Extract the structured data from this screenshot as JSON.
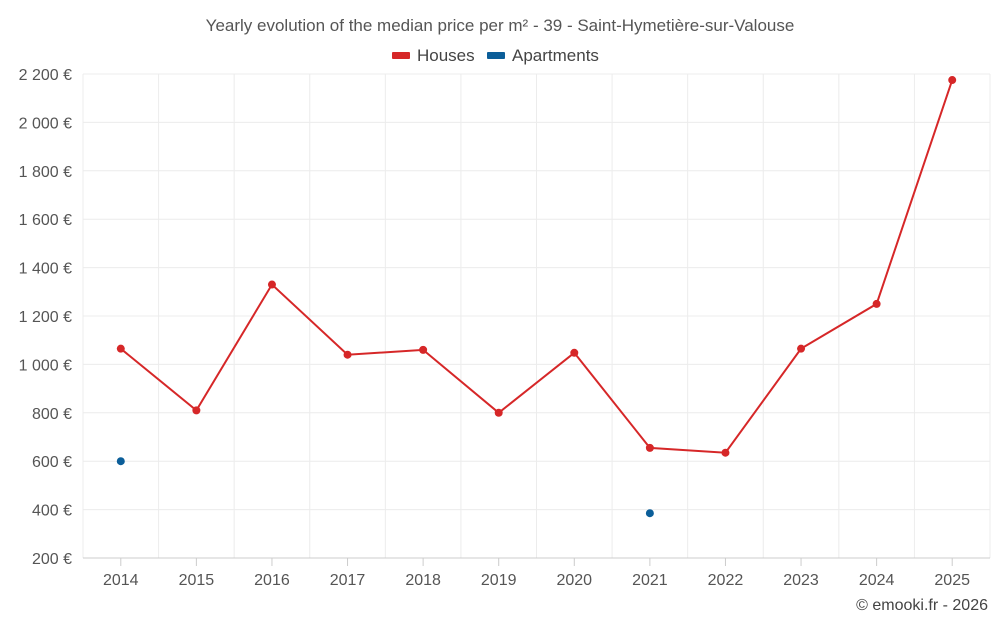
{
  "chart_data": {
    "type": "line",
    "title": "Yearly evolution of the median price per m² - 39 - Saint-Hymetière-sur-Valouse",
    "categories": [
      "2014",
      "2015",
      "2016",
      "2017",
      "2018",
      "2019",
      "2020",
      "2021",
      "2022",
      "2023",
      "2024",
      "2025"
    ],
    "series": [
      {
        "name": "Houses",
        "color": "#d62728",
        "values": [
          1065,
          810,
          1330,
          1040,
          1060,
          800,
          1048,
          655,
          635,
          1065,
          1250,
          2175
        ]
      },
      {
        "name": "Apartments",
        "color": "#0b5e99",
        "values": [
          600,
          null,
          null,
          null,
          null,
          null,
          null,
          385,
          null,
          null,
          null,
          null
        ]
      }
    ],
    "ylim": [
      200,
      2200
    ],
    "yticks": [
      200,
      400,
      600,
      800,
      1000,
      1200,
      1400,
      1600,
      1800,
      2000,
      2200
    ],
    "ytick_labels": [
      "200 €",
      "400 €",
      "600 €",
      "800 €",
      "1 000 €",
      "1 200 €",
      "1 400 €",
      "1 600 €",
      "1 800 €",
      "2 000 €",
      "2 200 €"
    ],
    "grid": true,
    "legend_position": "top-center",
    "credit": "© emooki.fr - 2026"
  }
}
